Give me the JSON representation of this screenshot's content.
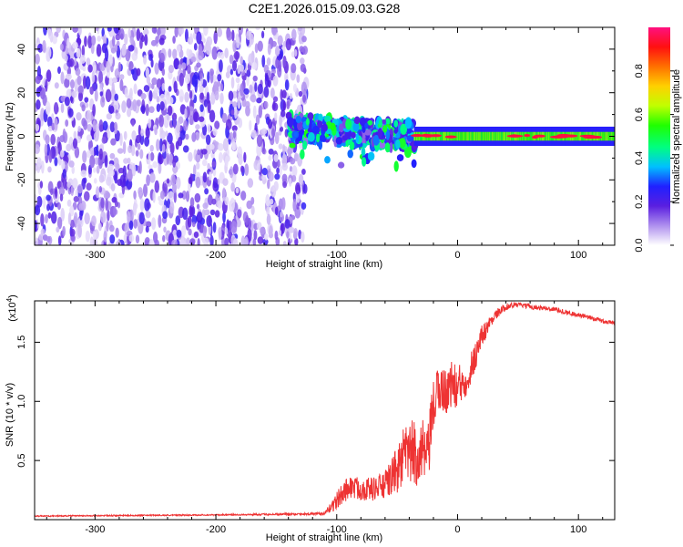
{
  "figure_title": "C2E1.2026.015.09.03.G28",
  "chart_data": [
    {
      "type": "heatmap",
      "title": "C2E1.2026.015.09.03.G28",
      "xlabel": "Height of straight line (km)",
      "ylabel": "Frequency (Hz)",
      "xlim": [
        -350,
        130
      ],
      "ylim": [
        -50,
        50
      ],
      "xticks": [
        -300,
        -200,
        -100,
        0,
        100
      ],
      "yticks": [
        -40,
        -20,
        0,
        20,
        40
      ],
      "colorbar": {
        "label": "Normalized spectral amplitude",
        "range": [
          0,
          1
        ],
        "ticks": [
          0.0,
          0.2,
          0.4,
          0.6,
          0.8
        ],
        "tick_labels": [
          "0.0",
          "0.2",
          "0.4",
          "0.6",
          "0.8"
        ],
        "colors": [
          "#ffffff",
          "#b89cf0",
          "#5a1fe0",
          "#2020ff",
          "#00c0ff",
          "#00ff80",
          "#20ff00",
          "#c0ff00",
          "#ffd000",
          "#ff7000",
          "#ff1010",
          "#ff1080"
        ]
      },
      "regions": [
        {
          "name": "noise",
          "x_range": [
            -350,
            -125
          ],
          "freq_range": [
            -50,
            50
          ],
          "amplitude": 0.15
        },
        {
          "name": "transition",
          "x_range": [
            -140,
            -35
          ],
          "freq_center": 4,
          "freq_spread": 6,
          "amplitude": 0.4
        },
        {
          "name": "carrier",
          "x_range": [
            -35,
            130
          ],
          "freq_center": 0,
          "freq_spread": 2,
          "amplitude": 0.75
        }
      ]
    },
    {
      "type": "line",
      "title": "",
      "xlabel": "Height of straight line (km)",
      "ylabel": "SNR (10 * v/v)",
      "y_scale_label": "(x10",
      "y_scale_exp": "4",
      "xlim": [
        -350,
        130
      ],
      "ylim": [
        0,
        1.85
      ],
      "xticks": [
        -300,
        -200,
        -100,
        0,
        100
      ],
      "yticks": [
        0.5,
        1.0,
        1.5
      ],
      "ytick_labels": [
        "0.5",
        "1.0",
        "1.5"
      ],
      "series": [
        {
          "name": "SNR",
          "color": "#ee3333",
          "x": [
            -350,
            -200,
            -110,
            -100,
            -90,
            -80,
            -70,
            -60,
            -50,
            -45,
            -40,
            -35,
            -30,
            -25,
            -20,
            -15,
            -10,
            -5,
            0,
            10,
            20,
            30,
            40,
            50,
            60,
            80,
            100,
            120,
            130
          ],
          "y": [
            0.03,
            0.04,
            0.05,
            0.16,
            0.28,
            0.26,
            0.26,
            0.29,
            0.42,
            0.52,
            0.57,
            0.55,
            0.58,
            0.5,
            0.95,
            1.12,
            1.08,
            1.15,
            1.1,
            1.25,
            1.55,
            1.72,
            1.8,
            1.82,
            1.8,
            1.78,
            1.73,
            1.68,
            1.66
          ],
          "noise": [
            0.005,
            0.005,
            0.01,
            0.08,
            0.1,
            0.1,
            0.1,
            0.12,
            0.2,
            0.25,
            0.28,
            0.28,
            0.3,
            0.25,
            0.25,
            0.2,
            0.2,
            0.2,
            0.2,
            0.15,
            0.1,
            0.04,
            0.03,
            0.02,
            0.02,
            0.02,
            0.02,
            0.02,
            0.02
          ]
        }
      ]
    }
  ]
}
